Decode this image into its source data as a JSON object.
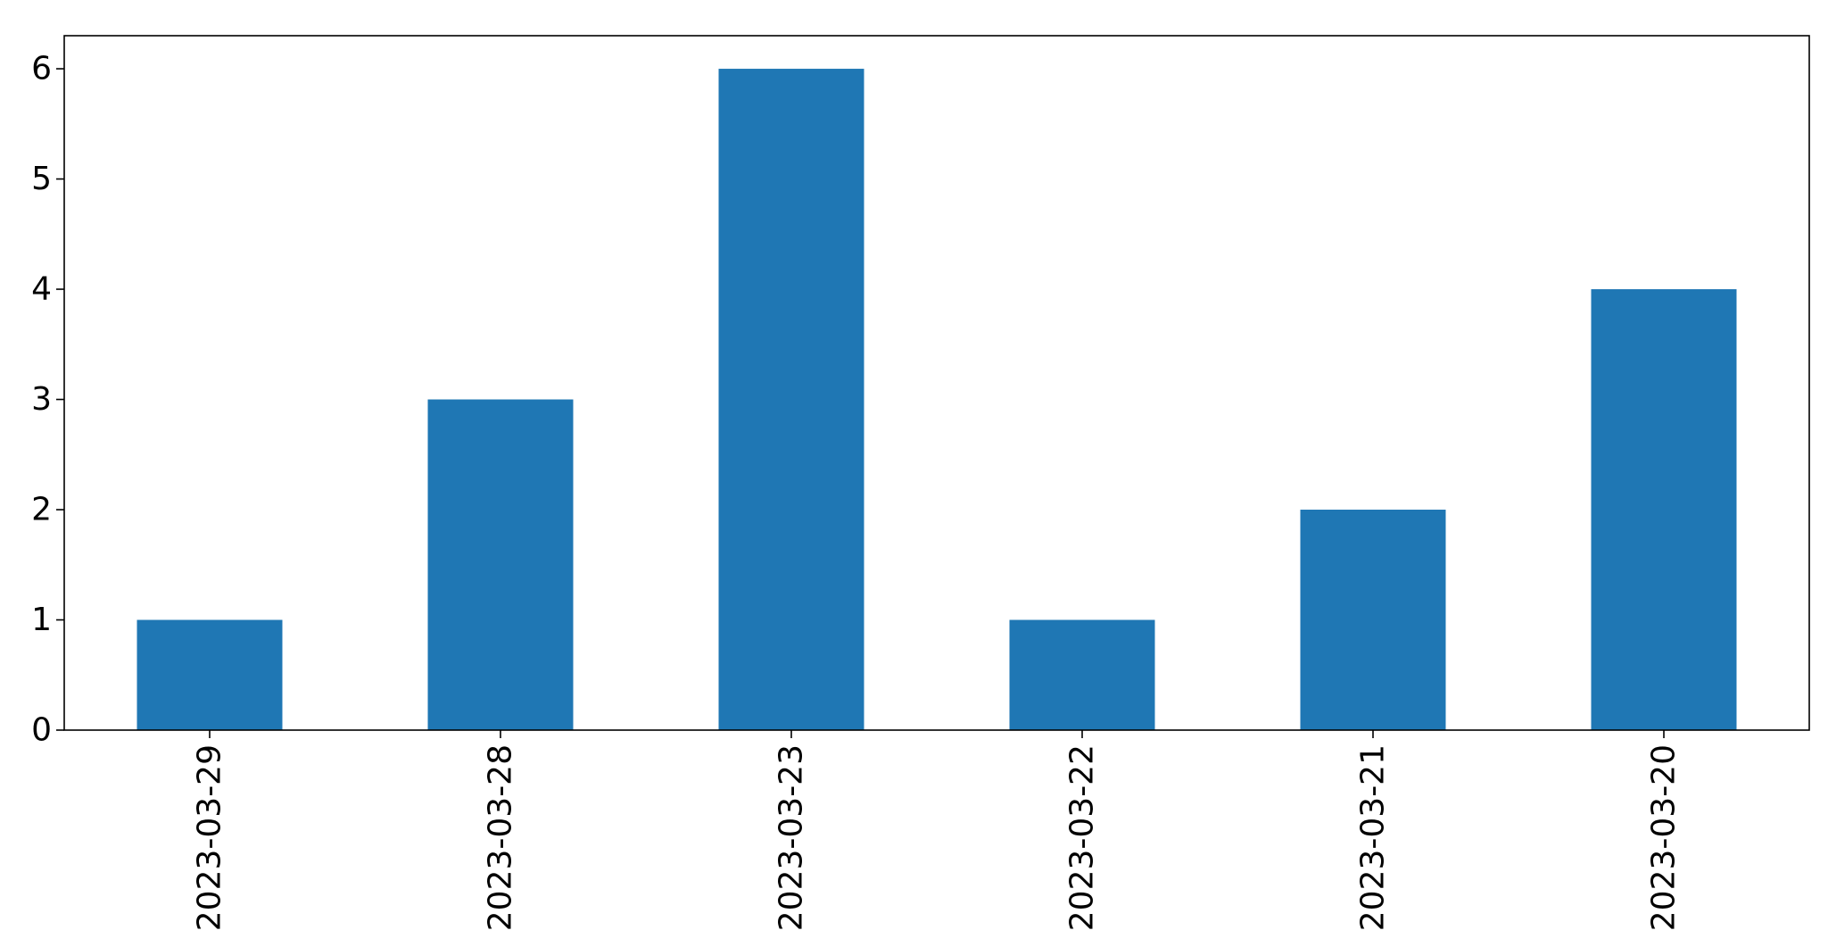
{
  "chart_data": {
    "type": "bar",
    "title": "",
    "xlabel": "",
    "ylabel": "",
    "categories": [
      "2023-03-29",
      "2023-03-28",
      "2023-03-23",
      "2023-03-22",
      "2023-03-21",
      "2023-03-20"
    ],
    "values": [
      1,
      3,
      6,
      1,
      2,
      4
    ],
    "ylim": [
      0,
      6.3
    ],
    "yticks": [
      0,
      1,
      2,
      3,
      4,
      5,
      6
    ],
    "grid": false,
    "legend": "none",
    "bar_color": "#1f77b4",
    "x_tick_rotation": "vertical"
  }
}
